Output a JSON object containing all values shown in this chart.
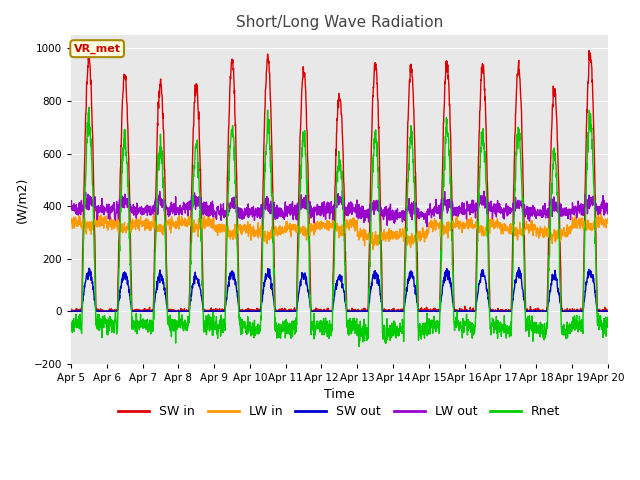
{
  "title": "Short/Long Wave Radiation",
  "xlabel": "Time",
  "ylabel": "(W/m2)",
  "ylim": [
    -200,
    1050
  ],
  "yticks": [
    -200,
    0,
    200,
    400,
    600,
    800,
    1000
  ],
  "n_days": 15,
  "n_per_day": 144,
  "series": {
    "SW_in": {
      "color": "#dd0000",
      "lw": 1.0,
      "label": "SW in"
    },
    "LW_in": {
      "color": "#ff9900",
      "lw": 1.0,
      "label": "LW in"
    },
    "SW_out": {
      "color": "#0000cc",
      "lw": 1.0,
      "label": "SW out"
    },
    "LW_out": {
      "color": "#9900cc",
      "lw": 1.0,
      "label": "LW out"
    },
    "Rnet": {
      "color": "#00cc00",
      "lw": 1.0,
      "label": "Rnet"
    }
  },
  "xtick_labels": [
    "Apr 5",
    "Apr 6",
    "Apr 7",
    "Apr 8",
    "Apr 9",
    "Apr 10",
    "Apr 11",
    "Apr 12",
    "Apr 13",
    "Apr 14",
    "Apr 15",
    "Apr 16",
    "Apr 17",
    "Apr 18",
    "Apr 19",
    "Apr 20"
  ],
  "annotation_text": "VR_met",
  "annotation_color": "#cc0000",
  "plot_bg_color": "#e8e8e8"
}
